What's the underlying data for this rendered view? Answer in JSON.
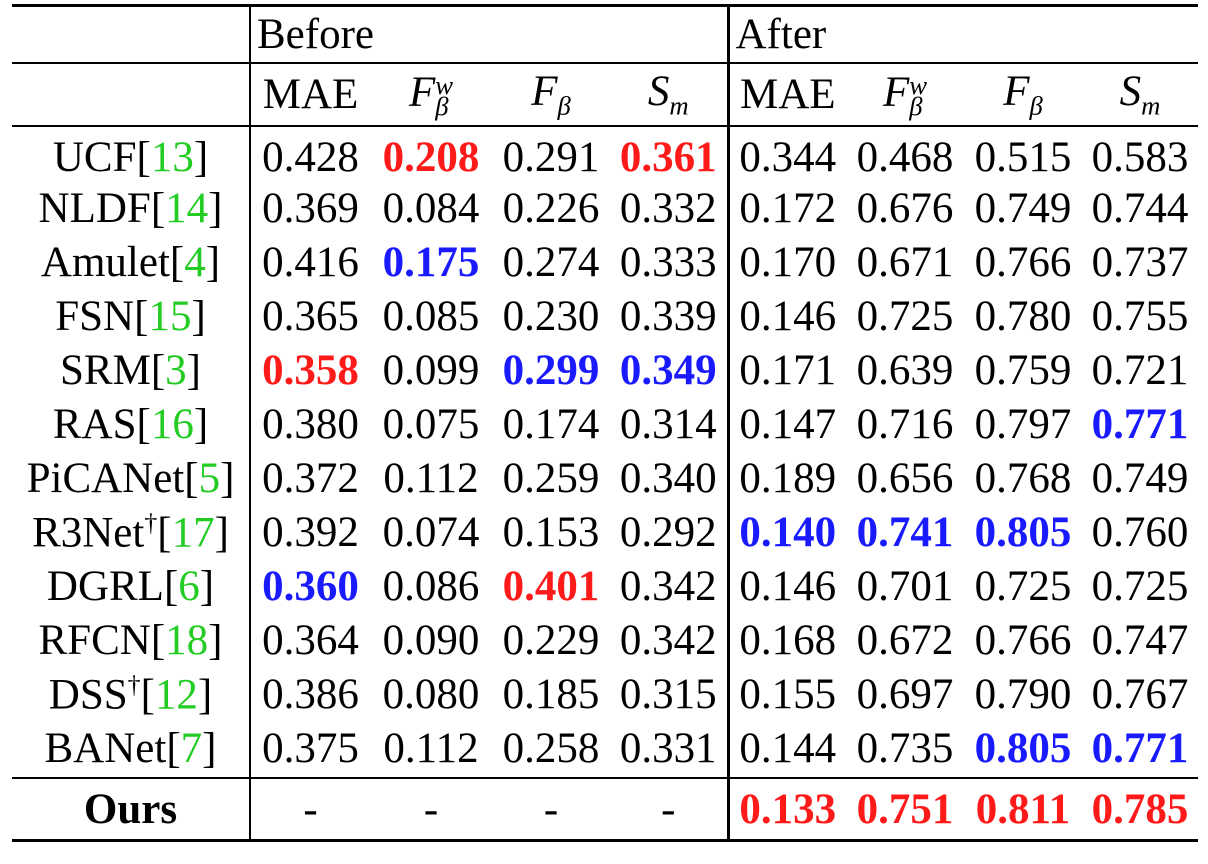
{
  "headers": {
    "group_before": "Before",
    "group_after": "After",
    "metrics": [
      {
        "base": "MAE",
        "sub": "",
        "sup": ""
      },
      {
        "base": "F",
        "sub": "β",
        "sup": "w"
      },
      {
        "base": "F",
        "sub": "β",
        "sup": ""
      },
      {
        "base": "S",
        "sub": "m",
        "sup": ""
      },
      {
        "base": "MAE",
        "sub": "",
        "sup": ""
      },
      {
        "base": "F",
        "sub": "β",
        "sup": "w"
      },
      {
        "base": "F",
        "sub": "β",
        "sup": ""
      },
      {
        "base": "S",
        "sub": "m",
        "sup": ""
      }
    ]
  },
  "rows": [
    {
      "name": "UCF",
      "dagger": "",
      "ref": "13",
      "before": [
        "0.428",
        "0.208",
        "0.291",
        "0.361"
      ],
      "after": [
        "0.344",
        "0.468",
        "0.515",
        "0.583"
      ],
      "before_hl": [
        "",
        "red",
        "",
        "red"
      ],
      "after_hl": [
        "",
        "",
        "",
        ""
      ]
    },
    {
      "name": "NLDF",
      "dagger": "",
      "ref": "14",
      "before": [
        "0.369",
        "0.084",
        "0.226",
        "0.332"
      ],
      "after": [
        "0.172",
        "0.676",
        "0.749",
        "0.744"
      ],
      "before_hl": [
        "",
        "",
        "",
        ""
      ],
      "after_hl": [
        "",
        "",
        "",
        ""
      ]
    },
    {
      "name": "Amulet",
      "dagger": "",
      "ref": "4",
      "before": [
        "0.416",
        "0.175",
        "0.274",
        "0.333"
      ],
      "after": [
        "0.170",
        "0.671",
        "0.766",
        "0.737"
      ],
      "before_hl": [
        "",
        "blue",
        "",
        ""
      ],
      "after_hl": [
        "",
        "",
        "",
        ""
      ]
    },
    {
      "name": "FSN",
      "dagger": "",
      "ref": "15",
      "before": [
        "0.365",
        "0.085",
        "0.230",
        "0.339"
      ],
      "after": [
        "0.146",
        "0.725",
        "0.780",
        "0.755"
      ],
      "before_hl": [
        "",
        "",
        "",
        ""
      ],
      "after_hl": [
        "",
        "",
        "",
        ""
      ]
    },
    {
      "name": "SRM",
      "dagger": "",
      "ref": "3",
      "before": [
        "0.358",
        "0.099",
        "0.299",
        "0.349"
      ],
      "after": [
        "0.171",
        "0.639",
        "0.759",
        "0.721"
      ],
      "before_hl": [
        "red",
        "",
        "blue",
        "blue"
      ],
      "after_hl": [
        "",
        "",
        "",
        ""
      ]
    },
    {
      "name": "RAS",
      "dagger": "",
      "ref": "16",
      "before": [
        "0.380",
        "0.075",
        "0.174",
        "0.314"
      ],
      "after": [
        "0.147",
        "0.716",
        "0.797",
        "0.771"
      ],
      "before_hl": [
        "",
        "",
        "",
        ""
      ],
      "after_hl": [
        "",
        "",
        "",
        "blue"
      ]
    },
    {
      "name": "PiCANet",
      "dagger": "",
      "ref": "5",
      "before": [
        "0.372",
        "0.112",
        "0.259",
        "0.340"
      ],
      "after": [
        "0.189",
        "0.656",
        "0.768",
        "0.749"
      ],
      "before_hl": [
        "",
        "",
        "",
        ""
      ],
      "after_hl": [
        "",
        "",
        "",
        ""
      ]
    },
    {
      "name": "R3Net",
      "dagger": "†",
      "ref": "17",
      "before": [
        "0.392",
        "0.074",
        "0.153",
        "0.292"
      ],
      "after": [
        "0.140",
        "0.741",
        "0.805",
        "0.760"
      ],
      "before_hl": [
        "",
        "",
        "",
        ""
      ],
      "after_hl": [
        "blue",
        "blue",
        "blue",
        ""
      ]
    },
    {
      "name": "DGRL",
      "dagger": "",
      "ref": "6",
      "before": [
        "0.360",
        "0.086",
        "0.401",
        "0.342"
      ],
      "after": [
        "0.146",
        "0.701",
        "0.725",
        "0.725"
      ],
      "before_hl": [
        "blue",
        "",
        "red",
        ""
      ],
      "after_hl": [
        "",
        "",
        "",
        ""
      ]
    },
    {
      "name": "RFCN",
      "dagger": "",
      "ref": "18",
      "before": [
        "0.364",
        "0.090",
        "0.229",
        "0.342"
      ],
      "after": [
        "0.168",
        "0.672",
        "0.766",
        "0.747"
      ],
      "before_hl": [
        "",
        "",
        "",
        ""
      ],
      "after_hl": [
        "",
        "",
        "",
        ""
      ]
    },
    {
      "name": "DSS",
      "dagger": "†",
      "ref": "12",
      "before": [
        "0.386",
        "0.080",
        "0.185",
        "0.315"
      ],
      "after": [
        "0.155",
        "0.697",
        "0.790",
        "0.767"
      ],
      "before_hl": [
        "",
        "",
        "",
        ""
      ],
      "after_hl": [
        "",
        "",
        "",
        ""
      ]
    },
    {
      "name": "BANet",
      "dagger": "",
      "ref": "7",
      "before": [
        "0.375",
        "0.112",
        "0.258",
        "0.331"
      ],
      "after": [
        "0.144",
        "0.735",
        "0.805",
        "0.771"
      ],
      "before_hl": [
        "",
        "",
        "",
        ""
      ],
      "after_hl": [
        "",
        "",
        "blue",
        "blue"
      ]
    }
  ],
  "ours": {
    "name": "Ours",
    "before": [
      "-",
      "-",
      "-",
      "-"
    ],
    "after": [
      "0.133",
      "0.751",
      "0.811",
      "0.785"
    ],
    "after_hl": [
      "red",
      "red",
      "red",
      "red"
    ]
  },
  "colors": {
    "best": "#ff1a1a",
    "second": "#1a1aff",
    "citation": "#22cc22"
  }
}
